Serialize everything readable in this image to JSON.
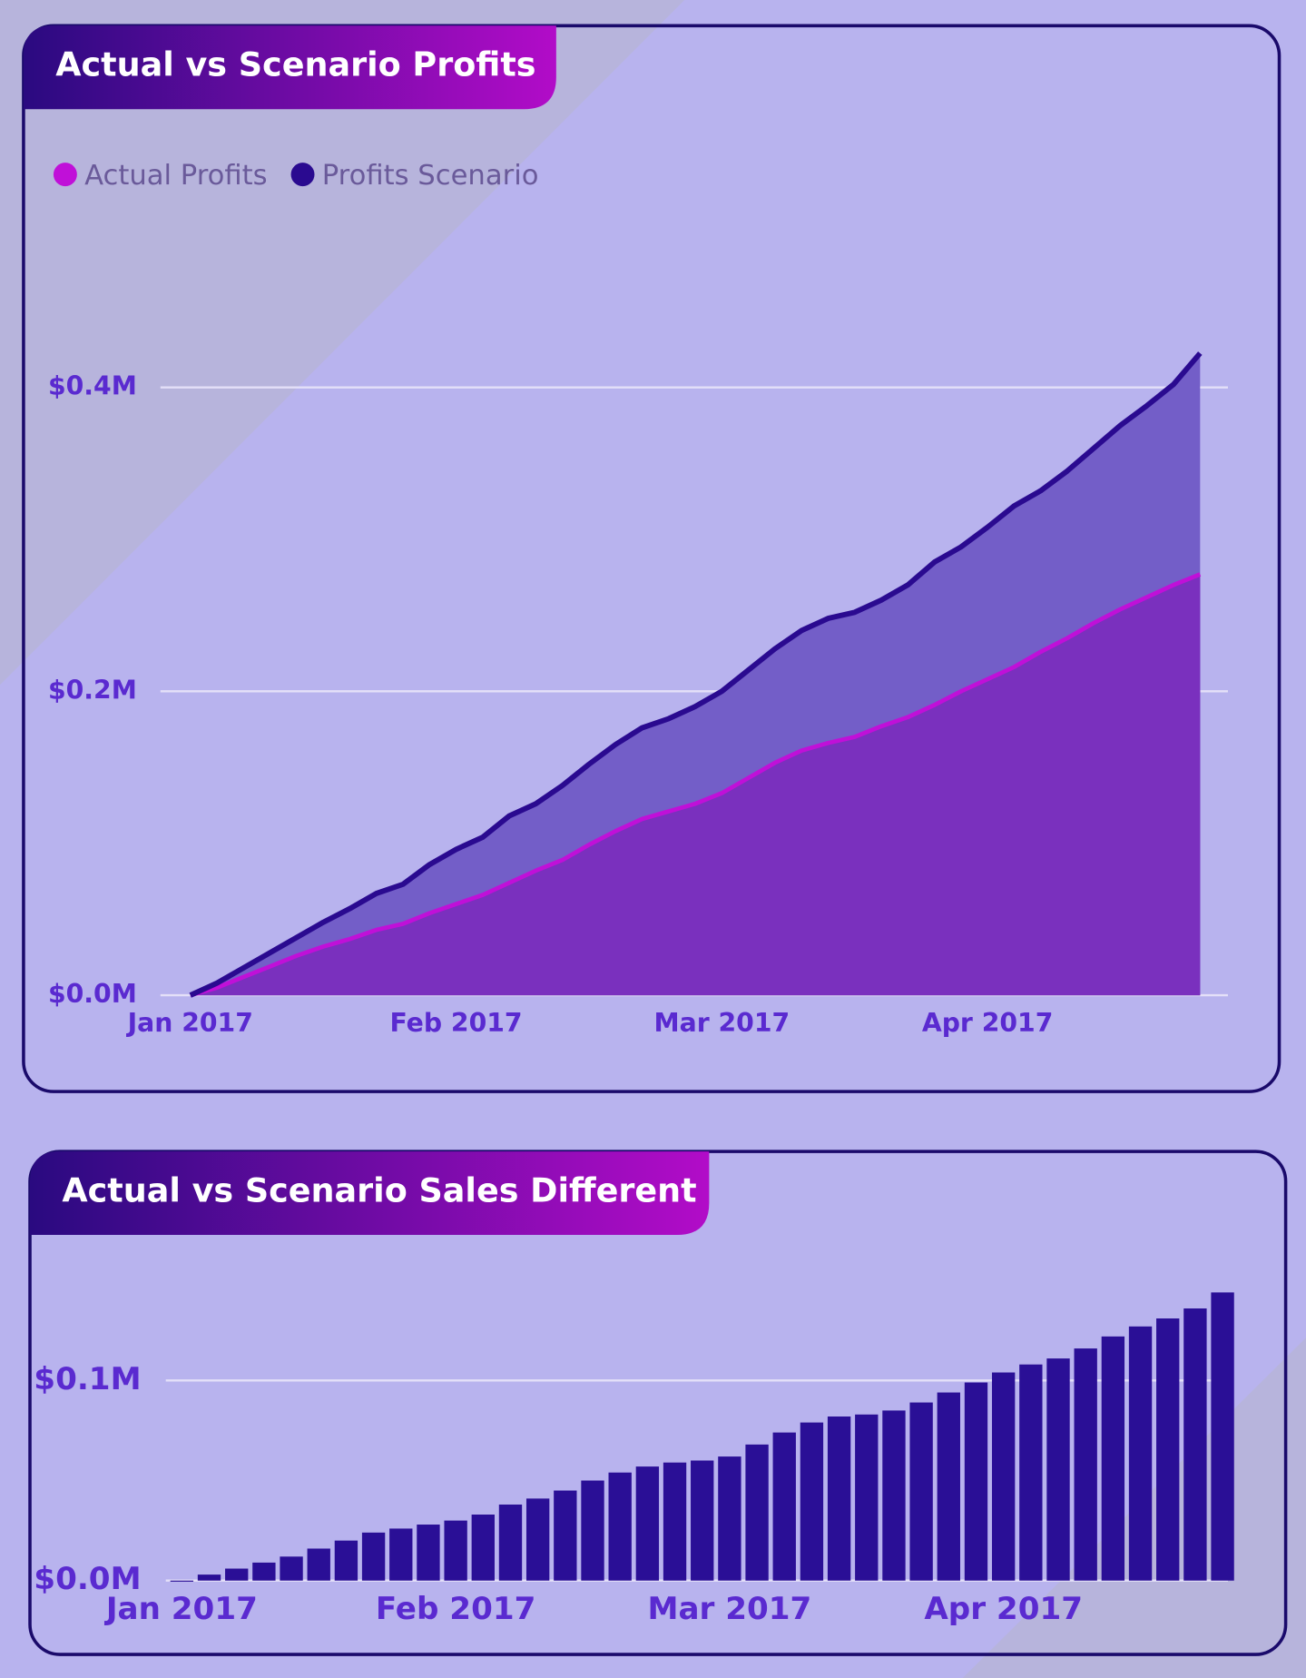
{
  "chart_data": [
    {
      "type": "area",
      "title": "Actual vs Scenario Profits",
      "categories": [
        "Jan 2017",
        null,
        null,
        null,
        null,
        null,
        null,
        null,
        null,
        null,
        "Feb 2017",
        null,
        null,
        null,
        null,
        null,
        null,
        null,
        null,
        null,
        "Mar 2017",
        null,
        null,
        null,
        null,
        null,
        null,
        null,
        null,
        null,
        "Apr 2017",
        null,
        null,
        null,
        null,
        null,
        null,
        null,
        null
      ],
      "series": [
        {
          "name": "Actual Profits",
          "color": "#c010d8",
          "fill": "#7a30be",
          "values": [
            0,
            0.005,
            0.012,
            0.019,
            0.026,
            0.032,
            0.037,
            0.043,
            0.047,
            0.054,
            0.06,
            0.066,
            0.074,
            0.082,
            0.089,
            0.099,
            0.108,
            0.116,
            0.121,
            0.126,
            0.133,
            0.143,
            0.153,
            0.161,
            0.166,
            0.17,
            0.177,
            0.183,
            0.191,
            0.2,
            0.208,
            0.216,
            0.226,
            0.235,
            0.245,
            0.254,
            0.262,
            0.27,
            0.277
          ]
        },
        {
          "name": "Profits Scenario",
          "color": "#2a0a90",
          "fill": "#735ec8",
          "values": [
            0,
            0.008,
            0.018,
            0.028,
            0.038,
            0.048,
            0.057,
            0.067,
            0.073,
            0.086,
            0.096,
            0.104,
            0.118,
            0.126,
            0.138,
            0.152,
            0.165,
            0.176,
            0.182,
            0.19,
            0.2,
            0.214,
            0.228,
            0.24,
            0.248,
            0.252,
            0.26,
            0.27,
            0.285,
            0.295,
            0.308,
            0.322,
            0.332,
            0.345,
            0.36,
            0.375,
            0.388,
            0.402,
            0.4225
          ]
        }
      ],
      "ylim": [
        0,
        0.44
      ],
      "yticks": [
        {
          "value": 0,
          "label": "$0.0M"
        },
        {
          "value": 0.2,
          "label": "$0.2M"
        },
        {
          "value": 0.4,
          "label": "$0.4M"
        }
      ],
      "grid": true,
      "legend": "top-left"
    },
    {
      "type": "bar",
      "title": "Actual vs Scenario Sales Different",
      "categories": [
        "Jan 2017",
        null,
        null,
        null,
        null,
        null,
        null,
        null,
        null,
        null,
        "Feb 2017",
        null,
        null,
        null,
        null,
        null,
        null,
        null,
        null,
        null,
        "Mar 2017",
        null,
        null,
        null,
        null,
        null,
        null,
        null,
        null,
        null,
        "Apr 2017",
        null,
        null,
        null,
        null,
        null,
        null,
        null,
        null
      ],
      "values": [
        0,
        0.003,
        0.006,
        0.009,
        0.012,
        0.016,
        0.02,
        0.024,
        0.026,
        0.028,
        0.03,
        0.033,
        0.038,
        0.041,
        0.045,
        0.05,
        0.054,
        0.057,
        0.059,
        0.06,
        0.062,
        0.068,
        0.074,
        0.079,
        0.082,
        0.083,
        0.085,
        0.089,
        0.094,
        0.099,
        0.104,
        0.108,
        0.111,
        0.116,
        0.122,
        0.127,
        0.131,
        0.136,
        0.144
      ],
      "color": "#2a0f96",
      "ylim": [
        0,
        0.15
      ],
      "yticks": [
        {
          "value": 0,
          "label": "$0.0M"
        },
        {
          "value": 0.1,
          "label": "$0.1M"
        }
      ],
      "grid": true
    }
  ]
}
